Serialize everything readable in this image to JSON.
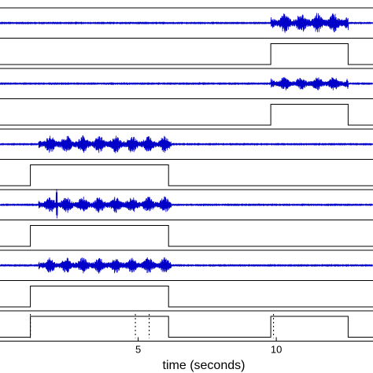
{
  "chart_data": {
    "type": "line",
    "xlabel": "time (seconds)",
    "ylabel": "",
    "xlim": [
      0,
      13.5
    ],
    "xticks": [
      {
        "value": 5,
        "label": "5"
      },
      {
        "value": 10,
        "label": "10"
      }
    ],
    "grid": false,
    "legend": "none",
    "colors": {
      "signal": "#0000c8",
      "gate": "#000000",
      "axes": "#000000"
    },
    "panels": [
      {
        "kind": "signal",
        "bursts": [
          {
            "start": 9.8,
            "end": 12.6,
            "amplitude": 0.85
          }
        ]
      },
      {
        "kind": "gate",
        "x": [
          0,
          9.8,
          9.8,
          12.6,
          12.6,
          13.5
        ],
        "y": [
          0,
          0,
          1,
          1,
          0,
          0
        ]
      },
      {
        "kind": "signal",
        "bursts": [
          {
            "start": 9.8,
            "end": 12.6,
            "amplitude": 0.6
          }
        ]
      },
      {
        "kind": "gate",
        "x": [
          0,
          9.8,
          9.8,
          12.6,
          12.6,
          13.5
        ],
        "y": [
          0,
          0,
          1,
          1,
          0,
          0
        ]
      },
      {
        "kind": "signal",
        "bursts": [
          {
            "start": 1.4,
            "end": 6.2,
            "amplitude": 0.75
          }
        ]
      },
      {
        "kind": "gate",
        "x": [
          0,
          1.1,
          1.1,
          6.1,
          6.1,
          13.5
        ],
        "y": [
          0,
          0,
          1,
          1,
          0,
          0
        ]
      },
      {
        "kind": "signal",
        "bursts": [
          {
            "start": 1.4,
            "end": 6.2,
            "amplitude": 0.7
          }
        ],
        "spike": {
          "x": 2.05,
          "amplitude": 1.6
        }
      },
      {
        "kind": "gate",
        "x": [
          0,
          1.1,
          1.1,
          6.1,
          6.1,
          13.5
        ],
        "y": [
          0,
          0,
          1,
          1,
          0,
          0
        ]
      },
      {
        "kind": "signal",
        "bursts": [
          {
            "start": 1.4,
            "end": 6.2,
            "amplitude": 0.7
          }
        ]
      },
      {
        "kind": "gate",
        "x": [
          0,
          1.1,
          1.1,
          6.1,
          6.1,
          13.5
        ],
        "y": [
          0,
          0,
          1,
          1,
          0,
          0
        ]
      },
      {
        "kind": "gate",
        "x": [
          0,
          1.1,
          1.1,
          6.1,
          6.1,
          9.8,
          9.8,
          12.6,
          12.6,
          13.5
        ],
        "y": [
          0,
          0,
          1,
          1,
          0,
          0,
          1,
          1,
          0,
          0
        ],
        "markers": [
          1.1,
          4.9,
          5.4,
          9.9
        ]
      }
    ]
  }
}
